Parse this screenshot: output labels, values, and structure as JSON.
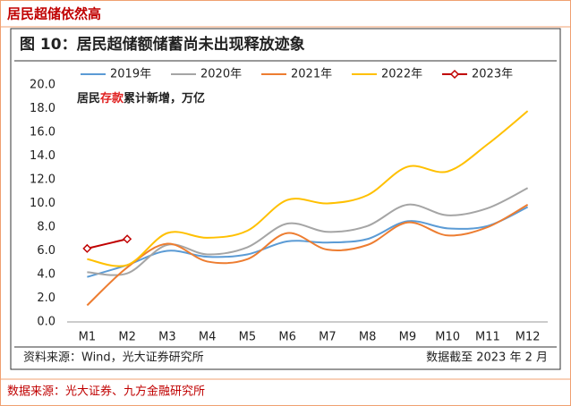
{
  "header": {
    "title": "居民超储依然高"
  },
  "footer": {
    "source": "数据来源：光大证券、九方金融研究所"
  },
  "chart_data": {
    "type": "line",
    "title": "图 10：居民超储额储蓄尚未出现释放迹象",
    "annotation": [
      "居民",
      "存款",
      "累计新增，万亿"
    ],
    "annotation_colors": [
      "#222222",
      "#e02020",
      "#222222"
    ],
    "source": "资料来源：Wind，光大证券研究所",
    "note": "数据截至 2023 年 2 月",
    "categories": [
      "M1",
      "M2",
      "M3",
      "M4",
      "M5",
      "M6",
      "M7",
      "M8",
      "M9",
      "M10",
      "M11",
      "M12"
    ],
    "series": [
      {
        "name": "2019年",
        "color": "#5b9bd5",
        "values": [
          3.8,
          4.8,
          6.0,
          5.5,
          5.7,
          6.8,
          6.7,
          7.0,
          8.5,
          7.9,
          8.1,
          9.7
        ]
      },
      {
        "name": "2020年",
        "color": "#a5a5a5",
        "values": [
          4.2,
          4.1,
          6.5,
          5.7,
          6.3,
          8.3,
          7.6,
          8.1,
          9.9,
          9.0,
          9.6,
          11.3
        ]
      },
      {
        "name": "2021年",
        "color": "#ed7d31",
        "values": [
          1.4,
          4.6,
          6.6,
          5.1,
          5.3,
          7.5,
          6.1,
          6.5,
          8.4,
          7.3,
          8.0,
          9.9
        ]
      },
      {
        "name": "2022年",
        "color": "#ffc000",
        "values": [
          5.3,
          4.8,
          7.5,
          7.1,
          7.7,
          10.3,
          10.0,
          10.7,
          13.1,
          12.7,
          15.0,
          17.8
        ]
      },
      {
        "name": "2023年",
        "color": "#c00000",
        "marker": "diamond",
        "values": [
          6.2,
          7.0,
          null,
          null,
          null,
          null,
          null,
          null,
          null,
          null,
          null,
          null
        ]
      }
    ],
    "ylim": [
      0,
      20
    ],
    "yticks": [
      {
        "value": 0,
        "label": "0.0"
      },
      {
        "value": 2,
        "label": "2.0"
      },
      {
        "value": 4,
        "label": "4.0"
      },
      {
        "value": 6,
        "label": "6.0"
      },
      {
        "value": 8,
        "label": "8.0"
      },
      {
        "value": 10,
        "label": "10.0"
      },
      {
        "value": 12,
        "label": "12.0"
      },
      {
        "value": 14,
        "label": "14.0"
      },
      {
        "value": 16,
        "label": "16.0"
      },
      {
        "value": 18,
        "label": "18.0"
      },
      {
        "value": 20,
        "label": "20.0"
      }
    ],
    "grid": false
  }
}
